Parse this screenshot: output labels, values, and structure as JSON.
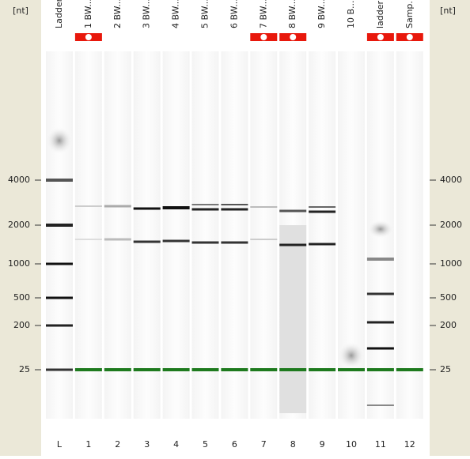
{
  "axis": {
    "unit": "[nt]",
    "ticks": [
      "4000",
      "2000",
      "1000",
      "500",
      "200",
      "25"
    ]
  },
  "lanes": [
    {
      "header": "Ladder",
      "number": "L"
    },
    {
      "header": "1 BW...",
      "number": "1"
    },
    {
      "header": "2 BW...",
      "number": "2"
    },
    {
      "header": "3 BW...",
      "number": "3"
    },
    {
      "header": "4 BW...",
      "number": "4"
    },
    {
      "header": "5 BW...",
      "number": "5"
    },
    {
      "header": "6 BW...",
      "number": "6"
    },
    {
      "header": "7 BW...",
      "number": "7"
    },
    {
      "header": "8 BW...",
      "number": "8"
    },
    {
      "header": "9 BW...",
      "number": "9"
    },
    {
      "header": "10 B...",
      "number": "10"
    },
    {
      "header": "ladder",
      "number": "11"
    },
    {
      "header": "Samp...",
      "number": "12"
    }
  ]
}
